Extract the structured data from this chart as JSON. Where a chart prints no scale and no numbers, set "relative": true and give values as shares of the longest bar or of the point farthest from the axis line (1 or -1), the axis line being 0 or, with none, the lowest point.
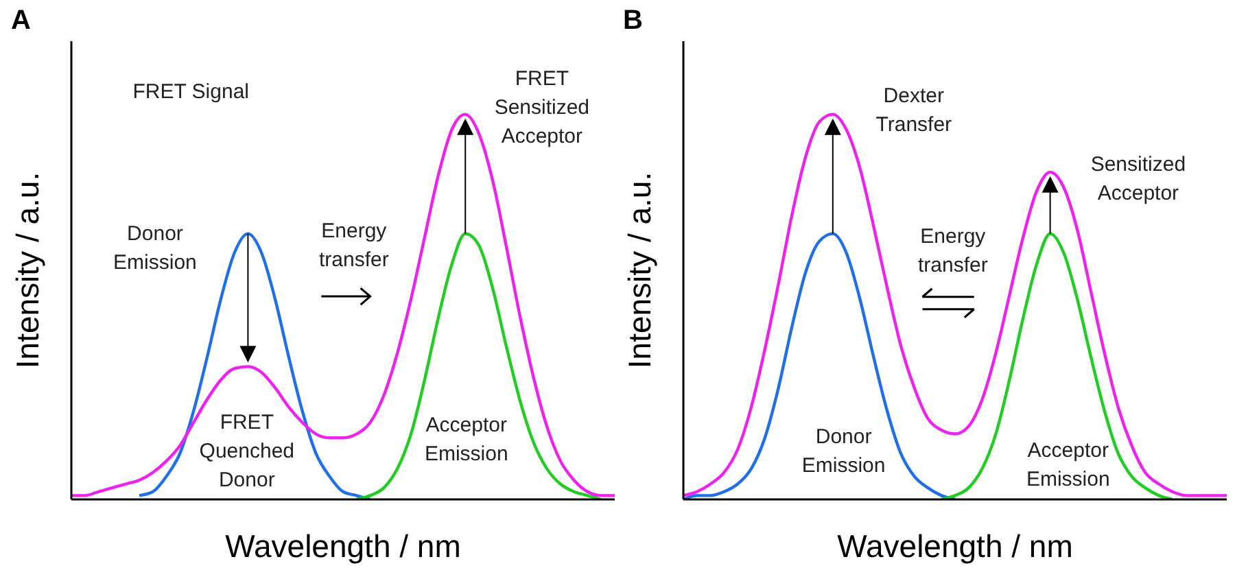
{
  "chart_data": [
    {
      "type": "line",
      "title": "A",
      "xlabel": "Wavelength / nm",
      "ylabel": "Intensity / a.u.",
      "relative": true,
      "categories": [
        null,
        null,
        null,
        null,
        null,
        null,
        null,
        null,
        null,
        null,
        null,
        null,
        null,
        null,
        null,
        null,
        null,
        null,
        null,
        null,
        null,
        null,
        null,
        null,
        null,
        null,
        null,
        null,
        null,
        null,
        null,
        null,
        null,
        null,
        null,
        null,
        null,
        null,
        null,
        null,
        null
      ],
      "series": [
        {
          "color": "#1f6fe8",
          "values": [
            null,
            null,
            null,
            null,
            null,
            0.01,
            0.02,
            0.06,
            0.12,
            0.23,
            0.37,
            0.52,
            0.64,
            0.69,
            0.64,
            0.52,
            0.37,
            0.23,
            0.12,
            0.06,
            0.02,
            0.01,
            0,
            null,
            null,
            null,
            null,
            null,
            null,
            null,
            null,
            null,
            null,
            null,
            null,
            null,
            null,
            null,
            null,
            null,
            null
          ]
        },
        {
          "color": "#22cc22",
          "values": [
            null,
            null,
            null,
            null,
            null,
            null,
            null,
            null,
            null,
            null,
            null,
            null,
            null,
            null,
            null,
            null,
            null,
            null,
            null,
            null,
            null,
            0,
            0.01,
            0.03,
            0.08,
            0.17,
            0.31,
            0.47,
            0.61,
            0.69,
            0.66,
            0.55,
            0.4,
            0.26,
            0.15,
            0.08,
            0.04,
            0.02,
            0.01,
            0,
            null
          ]
        },
        {
          "color": "#ee22ee",
          "values": [
            0.01,
            0.01,
            0.02,
            0.03,
            0.04,
            0.05,
            0.07,
            0.1,
            0.14,
            0.2,
            0.26,
            0.31,
            0.34,
            0.345,
            0.33,
            0.29,
            0.24,
            0.2,
            0.17,
            0.16,
            0.16,
            0.17,
            0.2,
            0.27,
            0.38,
            0.52,
            0.68,
            0.84,
            0.96,
            1.0,
            0.95,
            0.83,
            0.66,
            0.48,
            0.32,
            0.19,
            0.1,
            0.05,
            0.02,
            0.01,
            0.01
          ]
        }
      ],
      "annotations": [
        "FRET Signal",
        "Donor\nEmission",
        "Energy\ntransfer",
        "FRET\nSensitized\nAcceptor",
        "FRET\nQuenched\nDonor",
        "Acceptor\nEmission"
      ]
    },
    {
      "type": "line",
      "title": "B",
      "xlabel": "Wavelength / nm",
      "ylabel": "Intensity / a.u.",
      "relative": true,
      "categories": [
        null,
        null,
        null,
        null,
        null,
        null,
        null,
        null,
        null,
        null,
        null,
        null,
        null,
        null,
        null,
        null,
        null,
        null,
        null,
        null,
        null,
        null,
        null,
        null,
        null,
        null,
        null,
        null,
        null,
        null,
        null,
        null,
        null,
        null,
        null,
        null,
        null,
        null,
        null,
        null,
        null
      ],
      "series": [
        {
          "color": "#1f6fe8",
          "values": [
            0,
            0.01,
            0.01,
            0.02,
            0.04,
            0.08,
            0.16,
            0.29,
            0.45,
            0.59,
            0.67,
            0.69,
            0.64,
            0.52,
            0.37,
            0.23,
            0.12,
            0.06,
            0.03,
            0.01,
            0,
            null,
            null,
            null,
            null,
            null,
            null,
            null,
            null,
            null,
            null,
            null,
            null,
            null,
            null,
            null,
            null,
            null,
            null,
            null,
            null
          ]
        },
        {
          "color": "#22cc22",
          "values": [
            null,
            null,
            null,
            null,
            null,
            null,
            null,
            null,
            null,
            null,
            null,
            null,
            null,
            null,
            null,
            null,
            null,
            null,
            null,
            0,
            0.01,
            0.03,
            0.08,
            0.17,
            0.31,
            0.47,
            0.61,
            0.69,
            0.64,
            0.52,
            0.37,
            0.23,
            0.12,
            0.06,
            0.03,
            0.01,
            0,
            null,
            null,
            null,
            null
          ]
        },
        {
          "color": "#ee22ee",
          "values": [
            0.01,
            0.02,
            0.04,
            0.07,
            0.13,
            0.24,
            0.39,
            0.56,
            0.74,
            0.89,
            0.98,
            1.0,
            0.96,
            0.86,
            0.71,
            0.55,
            0.4,
            0.29,
            0.21,
            0.18,
            0.17,
            0.19,
            0.26,
            0.38,
            0.53,
            0.68,
            0.8,
            0.85,
            0.81,
            0.7,
            0.54,
            0.38,
            0.24,
            0.14,
            0.07,
            0.04,
            0.02,
            0.01,
            0.01,
            0.01,
            0.01
          ]
        }
      ],
      "annotations": [
        "Dexter\nTransfer",
        "Energy\ntransfer",
        "Sensitized\nAcceptor",
        "Donor\nEmission",
        "Acceptor\nEmission"
      ]
    }
  ]
}
